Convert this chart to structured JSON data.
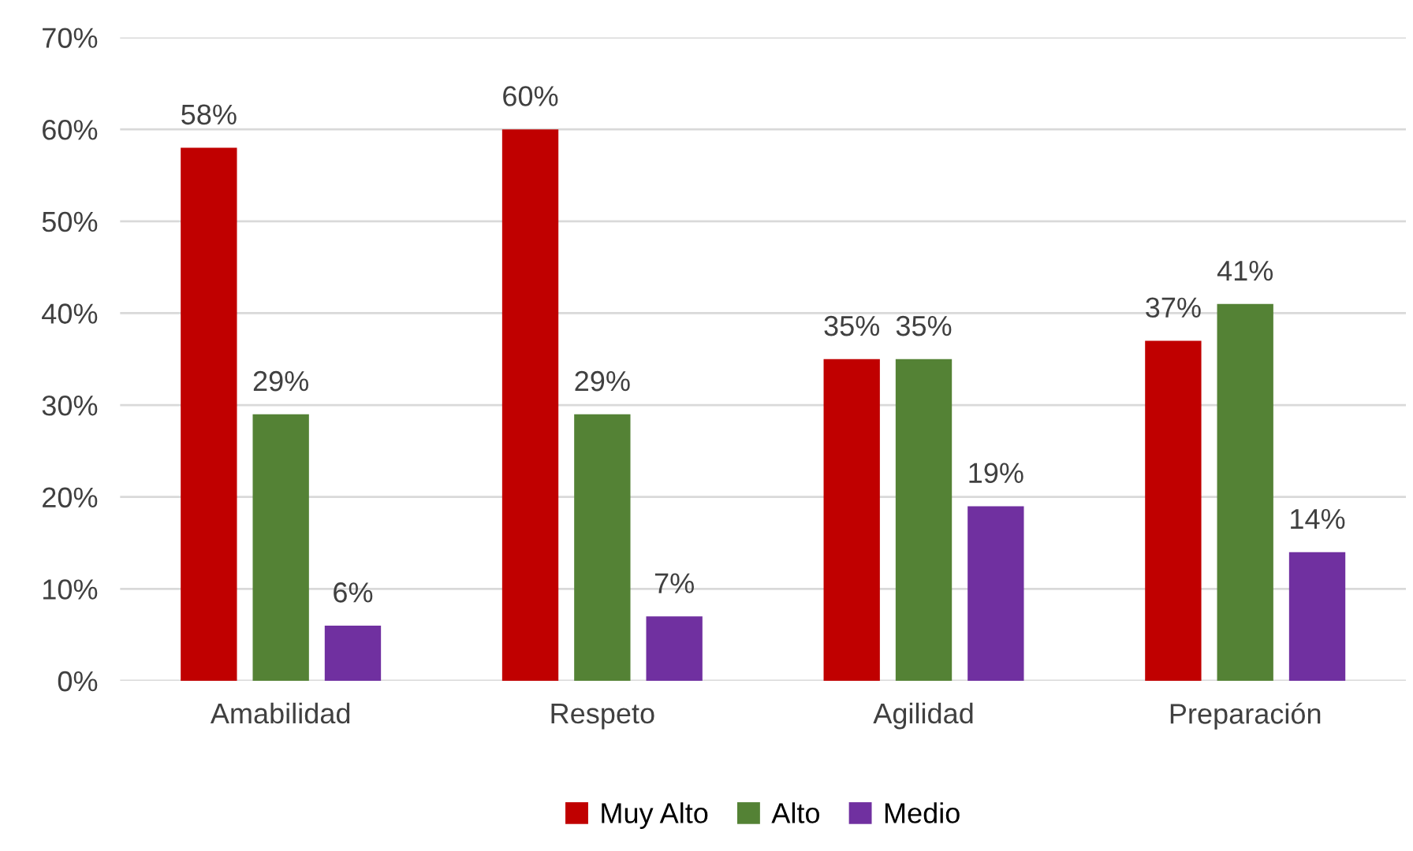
{
  "chart_data": {
    "type": "bar",
    "categories": [
      "Amabilidad",
      "Respeto",
      "Agilidad",
      "Preparación"
    ],
    "series": [
      {
        "name": "Muy Alto",
        "color": "#c00000",
        "values": [
          58,
          60,
          35,
          37
        ],
        "value_labels": [
          "58%",
          "60%",
          "35%",
          "37%"
        ]
      },
      {
        "name": "Alto",
        "color": "#548235",
        "values": [
          29,
          29,
          35,
          41
        ],
        "value_labels": [
          "29%",
          "29%",
          "35%",
          "41%"
        ]
      },
      {
        "name": "Medio",
        "color": "#7030a0",
        "values": [
          6,
          7,
          19,
          14
        ],
        "value_labels": [
          "6%",
          "7%",
          "19%",
          "14%"
        ]
      }
    ],
    "ylim": [
      0,
      70
    ],
    "yticks": [
      {
        "value": 0,
        "label": "0%"
      },
      {
        "value": 10,
        "label": "10%"
      },
      {
        "value": 20,
        "label": "20%"
      },
      {
        "value": 30,
        "label": "30%"
      },
      {
        "value": 40,
        "label": "40%"
      },
      {
        "value": 50,
        "label": "50%"
      },
      {
        "value": 60,
        "label": "60%"
      },
      {
        "value": 70,
        "label": "70%"
      }
    ],
    "grid": "y",
    "legend": "bottom"
  }
}
